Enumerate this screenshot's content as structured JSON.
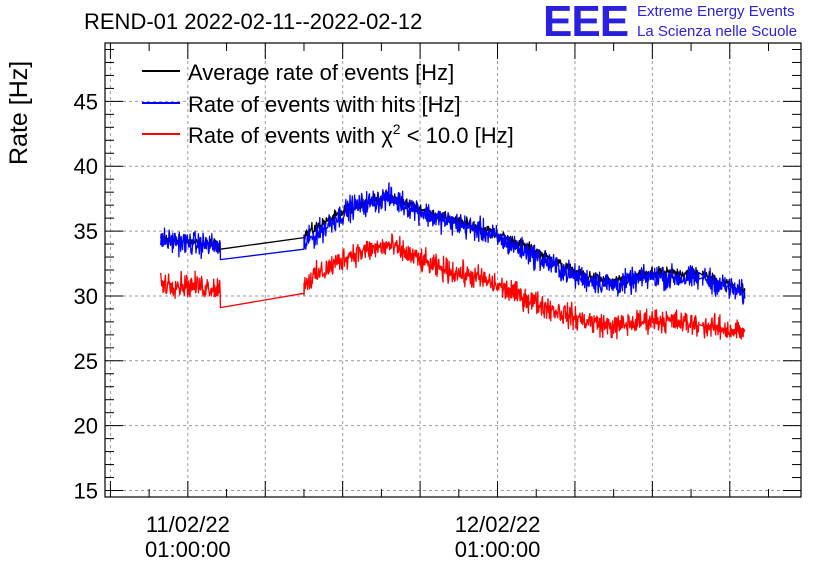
{
  "title": "REND-01 2022-02-11--2022-02-12",
  "logo": {
    "mark": "EEE",
    "line1": "Extreme Energy Events",
    "line2": "La Scienza nelle Scuole"
  },
  "chart_data": {
    "type": "line",
    "title": "REND-01 2022-02-11--2022-02-12",
    "xlabel": "",
    "ylabel": "Rate [Hz]",
    "xlim": [
      -1.07,
      7.92
    ],
    "ylim": [
      14.5,
      49.5
    ],
    "yticks": [
      "15",
      "20",
      "25",
      "30",
      "35",
      "40",
      "45"
    ],
    "xticks": [
      {
        "x": 0,
        "line1": "11/02/22",
        "line2": "01:00:00"
      },
      {
        "x": 4,
        "line1": "12/02/22",
        "line2": "01:00:00"
      }
    ],
    "legend_position": "top-left",
    "legend": [
      {
        "name": "Average rate of events [Hz]",
        "color": "#000000"
      },
      {
        "name": "Rate of events with hits [Hz]",
        "color": "#0000ff"
      },
      {
        "name_prefix": "Rate of events with ",
        "chi": "χ",
        "sup": "2",
        "name_suffix": " < 10.0 [Hz]",
        "color": "#ff0000"
      }
    ],
    "grid": true,
    "series": [
      {
        "name": "Average rate of events [Hz]",
        "color": "#000000",
        "noise": 0.5,
        "points": [
          [
            -0.35,
            34.4
          ],
          [
            0.42,
            33.9
          ],
          [
            0.42,
            33.6
          ],
          [
            1.5,
            34.5
          ],
          [
            1.5,
            34.7
          ],
          [
            2.1,
            36.8
          ],
          [
            2.6,
            37.7
          ],
          [
            3.2,
            36.2
          ],
          [
            3.8,
            35.2
          ],
          [
            4.4,
            33.7
          ],
          [
            5.0,
            31.8
          ],
          [
            5.5,
            31.0
          ],
          [
            6.0,
            31.7
          ],
          [
            6.6,
            31.8
          ],
          [
            6.65,
            31.6
          ],
          [
            7.2,
            30.4
          ]
        ]
      },
      {
        "name": "Rate of events with hits [Hz]",
        "color": "#0000ff",
        "noise": 1.0,
        "points": [
          [
            -0.35,
            34.3
          ],
          [
            0.42,
            33.8
          ],
          [
            0.42,
            32.8
          ],
          [
            1.5,
            33.6
          ],
          [
            1.5,
            34.0
          ],
          [
            2.1,
            36.8
          ],
          [
            2.6,
            37.6
          ],
          [
            3.2,
            36.0
          ],
          [
            3.8,
            35.0
          ],
          [
            4.4,
            33.3
          ],
          [
            5.0,
            31.5
          ],
          [
            5.5,
            30.8
          ],
          [
            6.0,
            31.5
          ],
          [
            6.6,
            31.3
          ],
          [
            6.65,
            31.4
          ],
          [
            7.2,
            30.1
          ]
        ]
      },
      {
        "name": "Rate of events with chi2 < 10.0 [Hz]",
        "color": "#ff0000",
        "noise": 1.0,
        "points": [
          [
            -0.35,
            31.0
          ],
          [
            0.42,
            30.6
          ],
          [
            0.42,
            29.1
          ],
          [
            1.5,
            30.2
          ],
          [
            1.5,
            31.0
          ],
          [
            2.1,
            33.2
          ],
          [
            2.6,
            33.9
          ],
          [
            3.2,
            32.2
          ],
          [
            3.8,
            31.3
          ],
          [
            4.4,
            29.7
          ],
          [
            5.0,
            28.3
          ],
          [
            5.5,
            27.6
          ],
          [
            6.0,
            28.2
          ],
          [
            6.6,
            27.8
          ],
          [
            6.65,
            27.7
          ],
          [
            7.2,
            27.2
          ]
        ]
      }
    ]
  }
}
